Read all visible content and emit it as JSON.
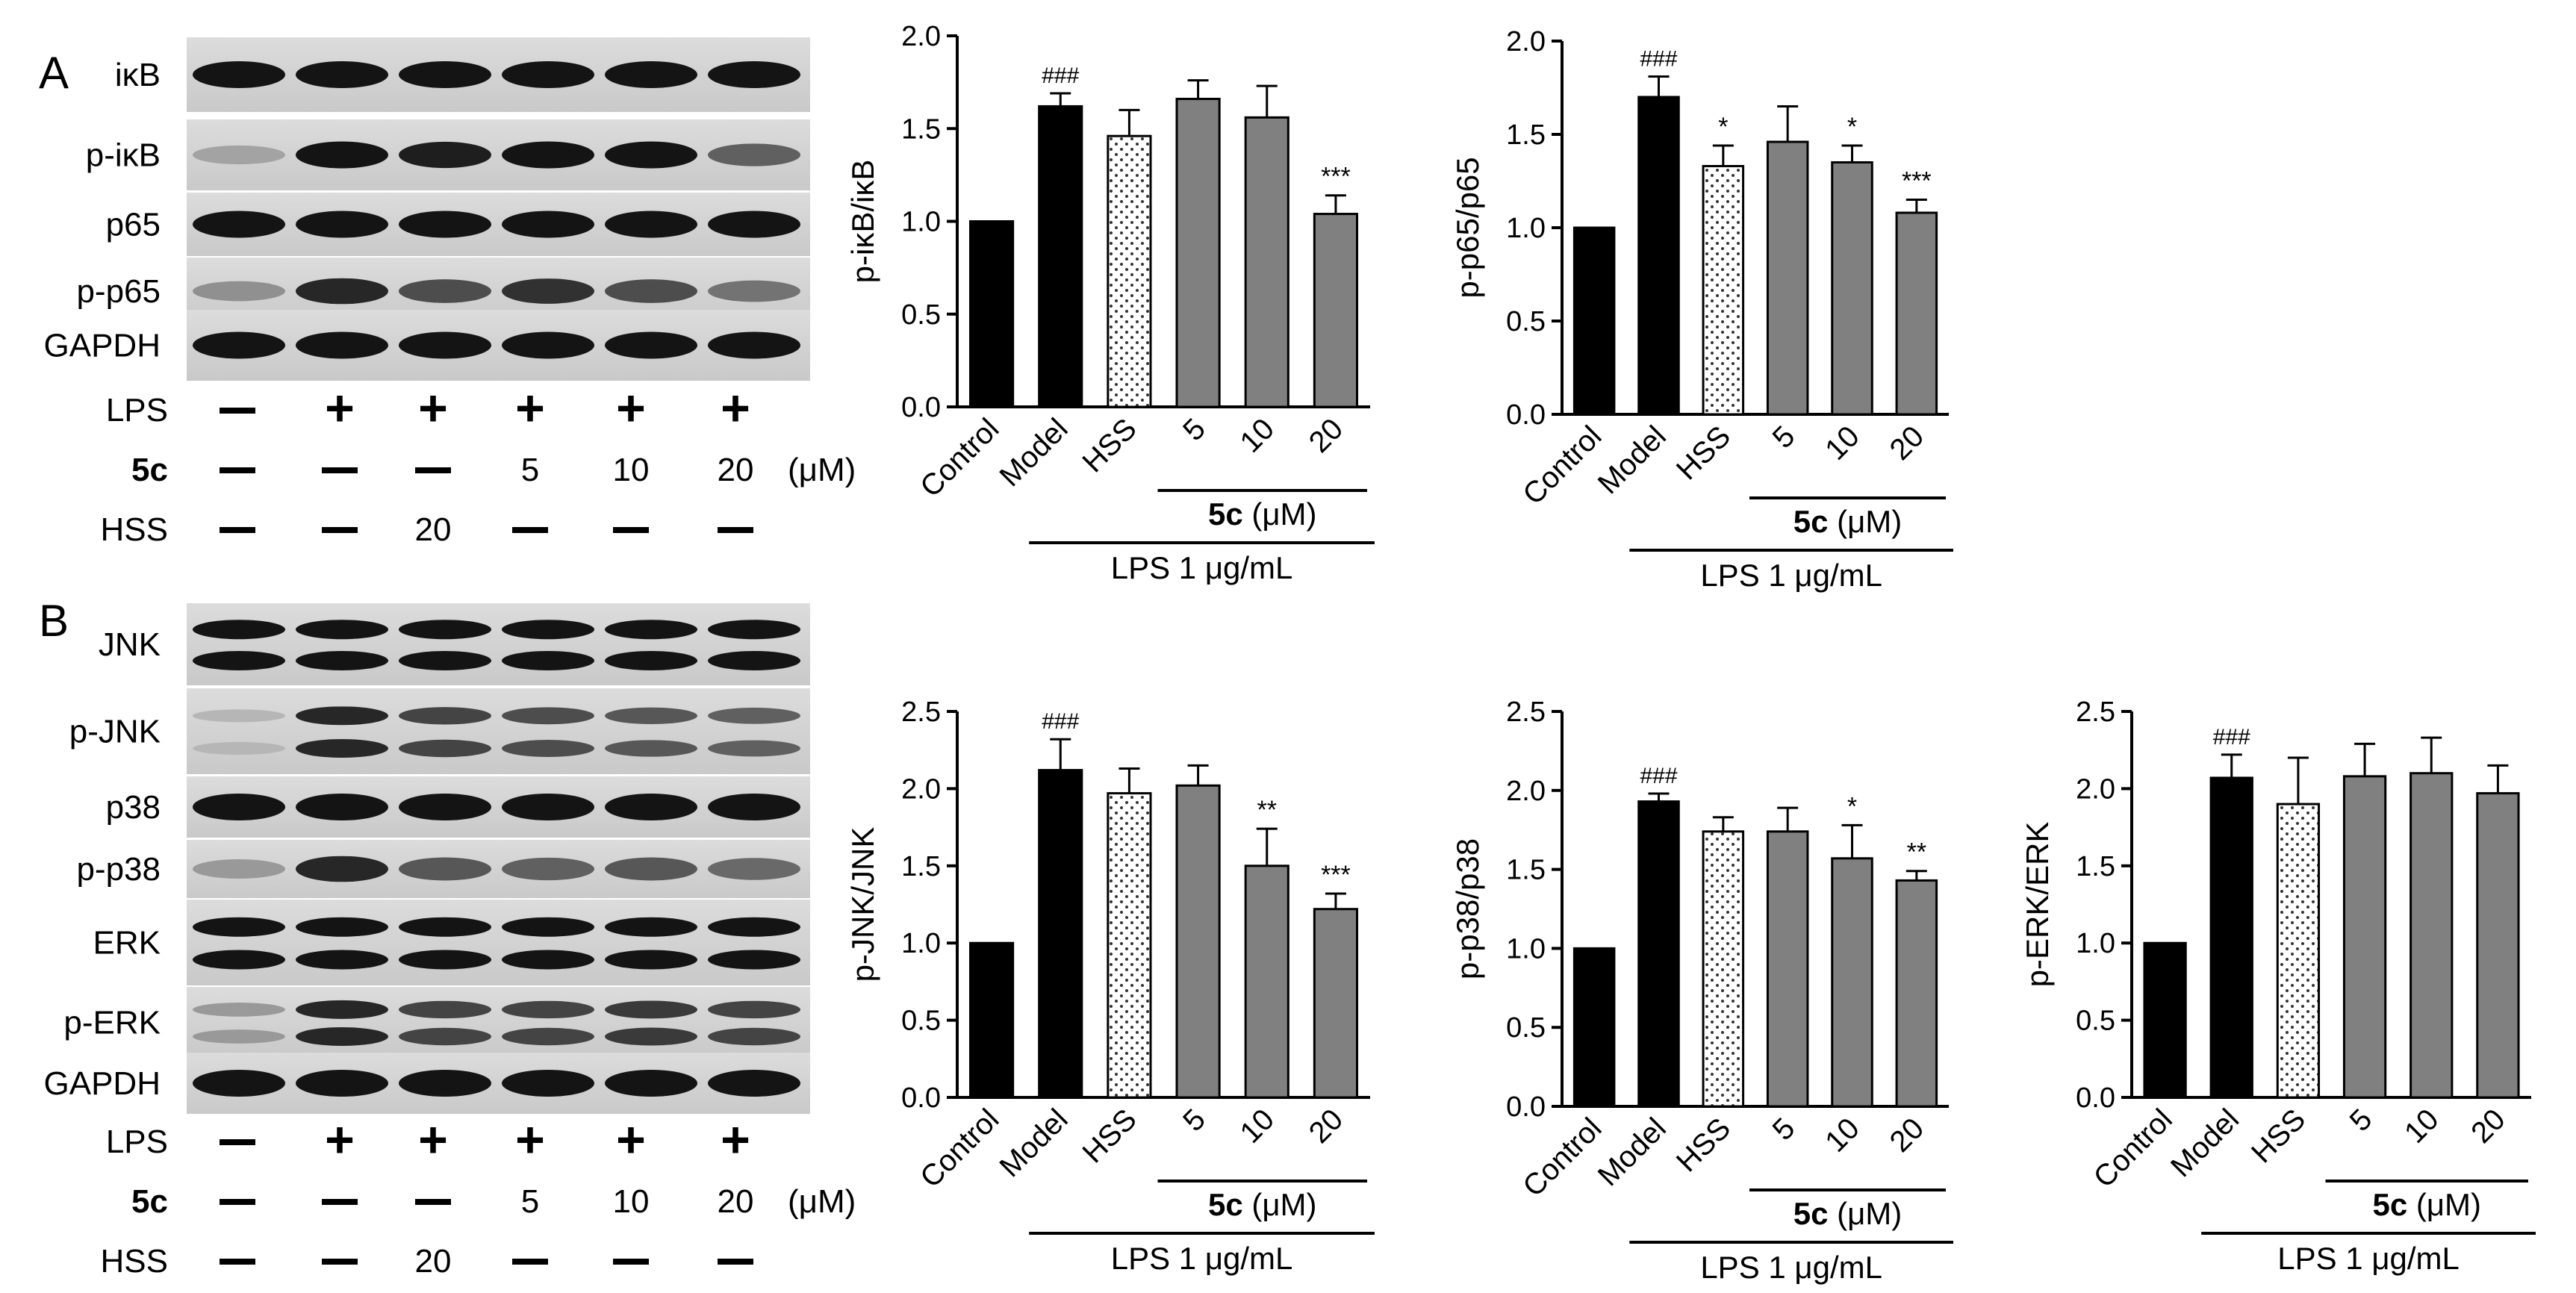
{
  "panel_a_label": "A",
  "panel_b_label": "B",
  "blots": {
    "a": {
      "rows": [
        "iκB",
        "p-iκB",
        "p65",
        "p-p65",
        "GAPDH"
      ]
    },
    "b": {
      "rows": [
        "JNK",
        "p-JNK",
        "p38",
        "p-p38",
        "ERK",
        "p-ERK",
        "GAPDH"
      ]
    }
  },
  "treatment": {
    "lps_label": "LPS",
    "c5_label": "5c",
    "hss_label": "HSS",
    "unit": "(μM)",
    "lps": [
      "–",
      "+",
      "+",
      "+",
      "+",
      "+"
    ],
    "c5": [
      "–",
      "–",
      "–",
      "5",
      "10",
      "20"
    ],
    "hss": [
      "–",
      "–",
      "20",
      "–",
      "–",
      "–"
    ]
  },
  "groups": {
    "c5_bracket": "5c",
    "c5_unit": " (μM)",
    "lps_bracket": "LPS 1 μg/mL"
  },
  "colors": {
    "black": "#000000",
    "gray": "#808080",
    "dotted": "#ffffff"
  },
  "chart_data": [
    {
      "type": "bar",
      "ylabel": "p-iκB/iκB",
      "categories": [
        "Control",
        "Model",
        "HSS",
        "5",
        "10",
        "20"
      ],
      "values": [
        1.0,
        1.62,
        1.46,
        1.66,
        1.56,
        1.04
      ],
      "errors": [
        0,
        0.07,
        0.14,
        0.1,
        0.17,
        0.1
      ],
      "annotations": [
        "",
        "###",
        "",
        "",
        "",
        "***"
      ],
      "fills": [
        "black",
        "black",
        "dotted",
        "gray",
        "gray",
        "gray"
      ],
      "ylim": [
        0,
        2.0
      ],
      "yticks": [
        "0.0",
        "0.5",
        "1.0",
        "1.5",
        "2.0"
      ]
    },
    {
      "type": "bar",
      "ylabel": "p-p65/p65",
      "categories": [
        "Control",
        "Model",
        "HSS",
        "5",
        "10",
        "20"
      ],
      "values": [
        1.0,
        1.7,
        1.33,
        1.46,
        1.35,
        1.08
      ],
      "errors": [
        0,
        0.11,
        0.11,
        0.19,
        0.09,
        0.07
      ],
      "annotations": [
        "",
        "###",
        "*",
        "",
        "*",
        "***"
      ],
      "fills": [
        "black",
        "black",
        "dotted",
        "gray",
        "gray",
        "gray"
      ],
      "ylim": [
        0,
        2.0
      ],
      "yticks": [
        "0.0",
        "0.5",
        "1.0",
        "1.5",
        "2.0"
      ]
    },
    {
      "type": "bar",
      "ylabel": "p-JNK/JNK",
      "categories": [
        "Control",
        "Model",
        "HSS",
        "5",
        "10",
        "20"
      ],
      "values": [
        1.0,
        2.12,
        1.97,
        2.02,
        1.5,
        1.22
      ],
      "errors": [
        0,
        0.2,
        0.16,
        0.13,
        0.24,
        0.1
      ],
      "annotations": [
        "",
        "###",
        "",
        "",
        "**",
        "***"
      ],
      "fills": [
        "black",
        "black",
        "dotted",
        "gray",
        "gray",
        "gray"
      ],
      "ylim": [
        0,
        2.5
      ],
      "yticks": [
        "0.0",
        "0.5",
        "1.0",
        "1.5",
        "2.0",
        "2.5"
      ]
    },
    {
      "type": "bar",
      "ylabel": "p-p38/p38",
      "categories": [
        "Control",
        "Model",
        "HSS",
        "5",
        "10",
        "20"
      ],
      "values": [
        1.0,
        1.93,
        1.74,
        1.74,
        1.57,
        1.43
      ],
      "errors": [
        0,
        0.05,
        0.09,
        0.15,
        0.21,
        0.06
      ],
      "annotations": [
        "",
        "###",
        "",
        "",
        "*",
        "**"
      ],
      "fills": [
        "black",
        "black",
        "dotted",
        "gray",
        "gray",
        "gray"
      ],
      "ylim": [
        0,
        2.5
      ],
      "yticks": [
        "0.0",
        "0.5",
        "1.0",
        "1.5",
        "2.0",
        "2.5"
      ]
    },
    {
      "type": "bar",
      "ylabel": "p-ERK/ERK",
      "categories": [
        "Control",
        "Model",
        "HSS",
        "5",
        "10",
        "20"
      ],
      "values": [
        1.0,
        2.07,
        1.9,
        2.08,
        2.1,
        1.97
      ],
      "errors": [
        0,
        0.15,
        0.3,
        0.21,
        0.23,
        0.18
      ],
      "annotations": [
        "",
        "###",
        "",
        "",
        "",
        ""
      ],
      "fills": [
        "black",
        "black",
        "dotted",
        "gray",
        "gray",
        "gray"
      ],
      "ylim": [
        0,
        2.5
      ],
      "yticks": [
        "0.0",
        "0.5",
        "1.0",
        "1.5",
        "2.0",
        "2.5"
      ]
    }
  ]
}
